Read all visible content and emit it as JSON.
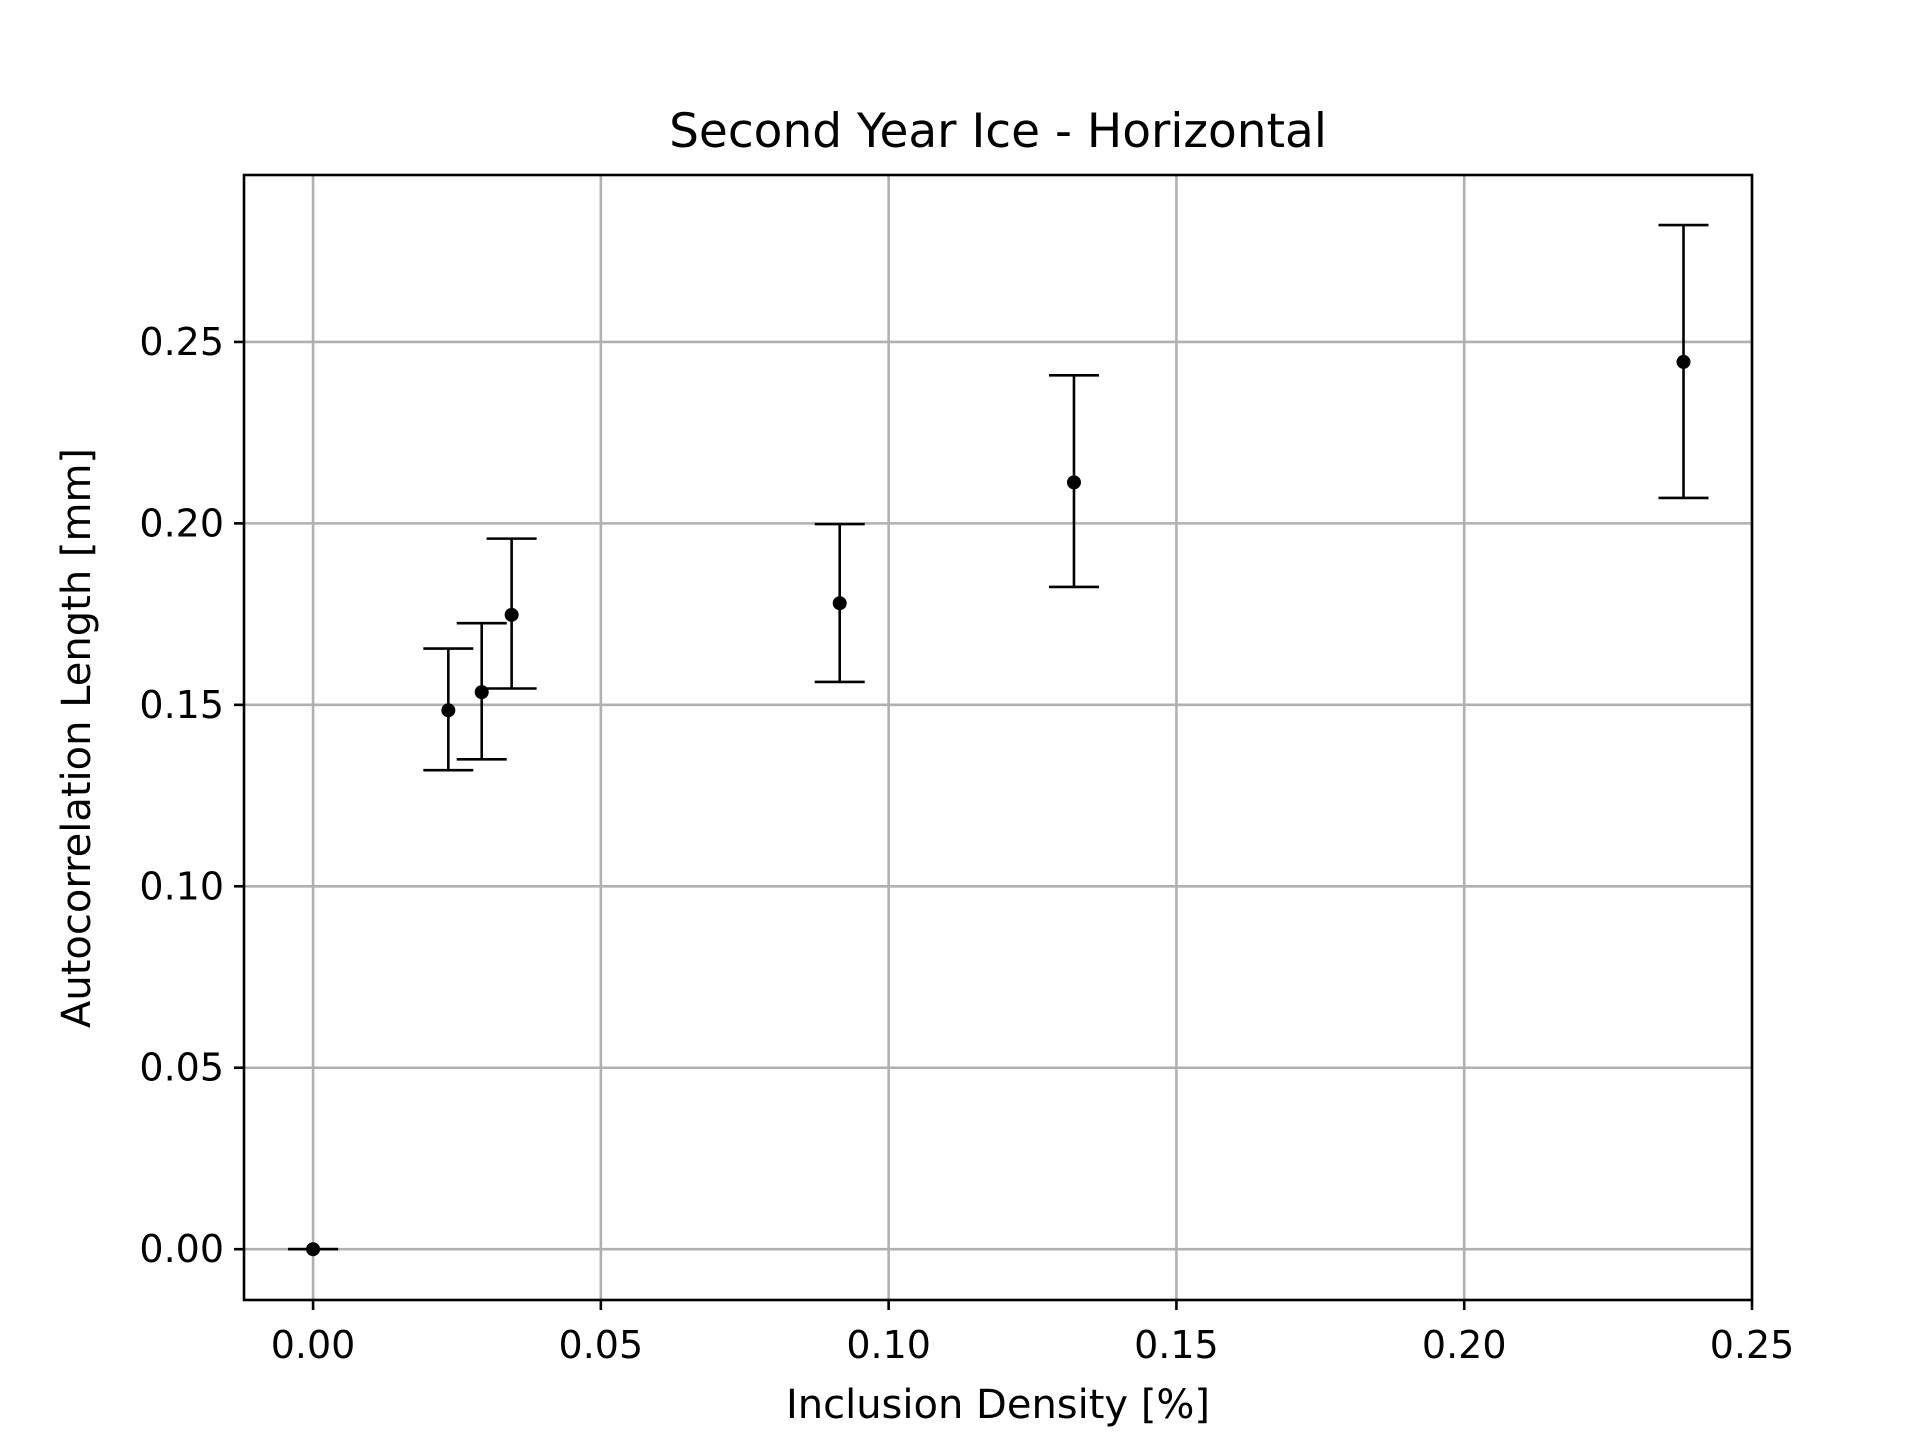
{
  "chart_data": {
    "type": "scatter",
    "title": "Second Year Ice - Horizontal",
    "xlabel": "Inclusion Density [%]",
    "ylabel": "Autocorrelation Length [mm]",
    "xlim": [
      -0.012,
      0.25
    ],
    "ylim": [
      -0.014,
      0.296
    ],
    "xticks": [
      "0.00",
      "0.05",
      "0.10",
      "0.15",
      "0.20",
      "0.25"
    ],
    "yticks": [
      "0.00",
      "0.05",
      "0.10",
      "0.15",
      "0.20",
      "0.25"
    ],
    "grid": true,
    "marker_color": "#000000",
    "grid_color": "#b0b0b0",
    "points": [
      {
        "x": 0.0,
        "y": 0.0,
        "y_low": 0.0,
        "y_high": 0.0
      },
      {
        "x": 0.0235,
        "y": 0.1485,
        "y_low": 0.132,
        "y_high": 0.1655
      },
      {
        "x": 0.0293,
        "y": 0.1535,
        "y_low": 0.135,
        "y_high": 0.1725
      },
      {
        "x": 0.0345,
        "y": 0.1748,
        "y_low": 0.1545,
        "y_high": 0.1958
      },
      {
        "x": 0.0915,
        "y": 0.178,
        "y_low": 0.1563,
        "y_high": 0.1998
      },
      {
        "x": 0.1322,
        "y": 0.2113,
        "y_low": 0.1825,
        "y_high": 0.2408
      },
      {
        "x": 0.2381,
        "y": 0.2445,
        "y_low": 0.207,
        "y_high": 0.2822
      }
    ]
  }
}
